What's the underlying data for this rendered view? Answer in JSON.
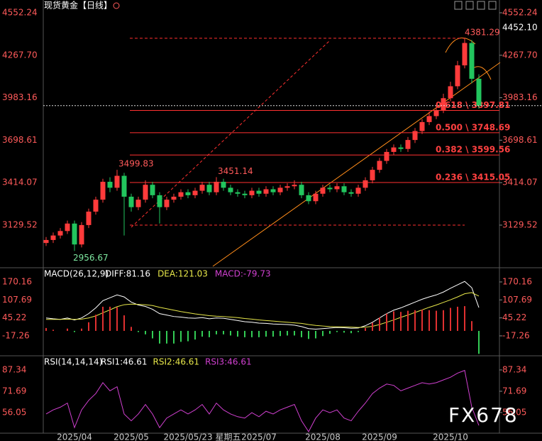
{
  "chart_data": [
    {
      "type": "candlestick",
      "title": "现货黄金【日线】",
      "up_color": "#ff3b3b",
      "down_color": "#22c55e",
      "ylim": [
        2853.6,
        4637.9
      ],
      "yticks": [
        4552.24,
        {
          "value": 4267.7,
          "label": "4267.70"
        },
        3983.16,
        3698.61,
        3414.07,
        3129.52
      ],
      "right_marker": {
        "value": 4452.1,
        "label": "4452.10"
      },
      "categories": [
        null,
        null,
        null,
        null,
        "2025/04",
        null,
        null,
        null,
        null,
        null,
        null,
        null,
        "2025/05",
        null,
        null,
        null,
        null,
        null,
        null,
        null,
        null,
        null,
        "2025/05/23 星期五",
        null,
        null,
        null,
        null,
        null,
        null,
        null,
        "2025/07",
        null,
        null,
        null,
        null,
        null,
        null,
        null,
        null,
        "2025/08",
        null,
        null,
        null,
        null,
        null,
        null,
        null,
        "2025/09",
        null,
        null,
        null,
        null,
        null,
        null,
        null,
        null,
        null,
        "2025/10",
        null,
        null,
        null,
        null
      ],
      "open": [
        3010,
        3030,
        3060,
        3090,
        3140,
        3000,
        3130,
        3220,
        3300,
        3420,
        3380,
        3460,
        3320,
        3250,
        3300,
        3400,
        3330,
        3250,
        3300,
        3320,
        3350,
        3330,
        3360,
        3400,
        3350,
        3420,
        3380,
        3350,
        3340,
        3330,
        3360,
        3340,
        3370,
        3350,
        3380,
        3390,
        3400,
        3330,
        3290,
        3340,
        3380,
        3370,
        3390,
        3350,
        3340,
        3380,
        3430,
        3500,
        3560,
        3620,
        3650,
        3640,
        3700,
        3760,
        3820,
        3860,
        3900,
        3980,
        4060,
        4200,
        4350,
        4110
      ],
      "high": [
        3050,
        3080,
        3110,
        3160,
        3160,
        3150,
        3240,
        3320,
        3440,
        3450,
        3499.83,
        3480,
        3340,
        3320,
        3430,
        3420,
        3350,
        3320,
        3340,
        3370,
        3370,
        3380,
        3420,
        3420,
        3451.14,
        3440,
        3400,
        3370,
        3360,
        3380,
        3380,
        3390,
        3390,
        3400,
        3410,
        3430,
        3420,
        3350,
        3360,
        3400,
        3400,
        3410,
        3410,
        3370,
        3400,
        3450,
        3520,
        3580,
        3640,
        3670,
        3670,
        3720,
        3780,
        3840,
        3890,
        3930,
        4010,
        4090,
        4230,
        4381.29,
        4370,
        4140
      ],
      "low": [
        2990,
        3010,
        3040,
        3070,
        2956.67,
        2980,
        3110,
        3200,
        3280,
        3350,
        3360,
        3060,
        3220,
        3230,
        3280,
        3310,
        3140,
        3230,
        3280,
        3300,
        3310,
        3310,
        3340,
        3330,
        3330,
        3360,
        3330,
        3320,
        3310,
        3310,
        3320,
        3320,
        3330,
        3330,
        3360,
        3370,
        3310,
        3270,
        3270,
        3320,
        3350,
        3350,
        3330,
        3320,
        3320,
        3360,
        3410,
        3480,
        3540,
        3600,
        3620,
        3620,
        3680,
        3740,
        3800,
        3840,
        3880,
        3960,
        4040,
        4180,
        4080,
        3910
      ],
      "close": [
        3030,
        3060,
        3090,
        3140,
        3000,
        3130,
        3220,
        3300,
        3420,
        3380,
        3460,
        3320,
        3250,
        3300,
        3400,
        3330,
        3250,
        3300,
        3320,
        3350,
        3330,
        3360,
        3400,
        3350,
        3420,
        3380,
        3350,
        3340,
        3330,
        3360,
        3340,
        3370,
        3350,
        3380,
        3390,
        3400,
        3330,
        3290,
        3340,
        3380,
        3370,
        3390,
        3350,
        3340,
        3380,
        3430,
        3500,
        3560,
        3620,
        3650,
        3640,
        3700,
        3760,
        3820,
        3860,
        3900,
        3980,
        4060,
        4200,
        4350,
        4110,
        3930
      ],
      "fib_levels": [
        {
          "value": 3897.81,
          "label": "0.618 \\ 3897.81"
        },
        {
          "value": 3748.69,
          "label": "0.500 \\ 3748.69"
        },
        {
          "value": 3599.56,
          "label": "0.382 \\ 3599.56"
        },
        {
          "value": 3415.05,
          "label": "0.236 \\ 3415.05"
        }
      ],
      "range_lines": [
        4381.29,
        3129.52
      ]
    },
    {
      "type": "macd",
      "title": "MACD(26,12,9)",
      "ylim": [
        -84,
        217
      ],
      "yticks": [
        170.16,
        107.69,
        45.22,
        -17.26
      ],
      "up_color": "#e03030",
      "down_color": "#33cc55",
      "series": [
        {
          "name": "DIFF:81.16",
          "color": "#ffffff",
          "values": [
            45,
            42,
            40,
            45,
            38,
            45,
            60,
            80,
            105,
            115,
            125,
            118,
            100,
            90,
            85,
            75,
            60,
            55,
            50,
            48,
            45,
            44,
            46,
            42,
            45,
            44,
            40,
            36,
            32,
            30,
            27,
            26,
            24,
            23,
            22,
            20,
            15,
            8,
            6,
            8,
            10,
            12,
            11,
            9,
            10,
            18,
            30,
            45,
            60,
            72,
            80,
            90,
            100,
            110,
            118,
            125,
            135,
            148,
            160,
            172,
            150,
            81.16
          ]
        },
        {
          "name": "DEA:121.03",
          "color": "#e8e84a",
          "values": [
            40,
            40,
            40,
            41,
            40,
            41,
            45,
            52,
            63,
            73,
            84,
            91,
            93,
            92,
            91,
            88,
            82,
            77,
            72,
            67,
            63,
            59,
            56,
            53,
            51,
            50,
            48,
            46,
            43,
            41,
            38,
            36,
            34,
            32,
            30,
            28,
            26,
            22,
            19,
            17,
            15,
            14,
            14,
            13,
            12,
            13,
            16,
            22,
            30,
            38,
            47,
            55,
            64,
            73,
            82,
            90,
            99,
            108,
            118,
            129,
            133,
            121.03
          ]
        },
        {
          "name": "MACD:-79.73",
          "color": "#d040d0",
          "bars": true,
          "values": [
            10,
            4,
            0,
            8,
            -4,
            8,
            30,
            56,
            84,
            84,
            82,
            54,
            14,
            -4,
            -12,
            -26,
            -44,
            -44,
            -44,
            -38,
            -36,
            -30,
            -20,
            -22,
            -12,
            -12,
            -16,
            -20,
            -22,
            -22,
            -22,
            -20,
            -20,
            -18,
            -16,
            -16,
            -22,
            -28,
            -26,
            -18,
            -10,
            -4,
            -6,
            -8,
            -4,
            10,
            28,
            46,
            60,
            68,
            66,
            70,
            72,
            74,
            72,
            70,
            72,
            80,
            84,
            86,
            34,
            -79.73
          ]
        }
      ]
    },
    {
      "type": "rsi",
      "title": "RSI(14,14,14)",
      "ylim": [
        40.9,
        96.7
      ],
      "yticks": [
        87.34,
        71.69,
        56.05
      ],
      "series": [
        {
          "name": "RSI1:46.61",
          "color": "#d040d0",
          "values": [
            55,
            58,
            60,
            63,
            45,
            58,
            65,
            70,
            78,
            72,
            75,
            55,
            50,
            55,
            62,
            55,
            45,
            52,
            55,
            58,
            55,
            58,
            62,
            55,
            63,
            58,
            55,
            53,
            52,
            56,
            53,
            57,
            55,
            58,
            60,
            62,
            50,
            42,
            52,
            58,
            56,
            58,
            52,
            50,
            57,
            63,
            70,
            74,
            77,
            76,
            72,
            74,
            76,
            78,
            77,
            78,
            80,
            82,
            85,
            87,
            60,
            46.61
          ]
        }
      ],
      "legend_notes": [
        {
          "text": "RSI2:46.61",
          "color": "#e8e84a"
        },
        {
          "text": "RSI3:46.61",
          "color": "#d040d0"
        }
      ]
    }
  ],
  "watermark": "FX678"
}
